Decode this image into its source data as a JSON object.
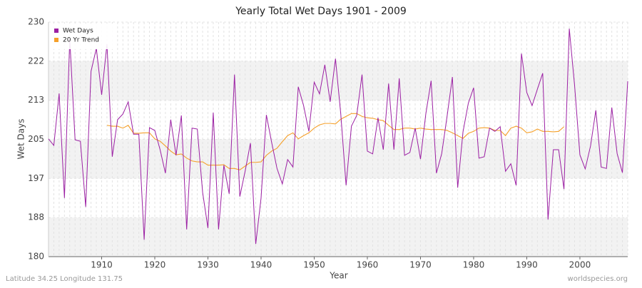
{
  "chart_data": {
    "type": "line",
    "title": "Yearly Total Wet Days 1901 - 2009",
    "x_label": "Year",
    "y_label": "Wet Days",
    "footer_left": "Latitude 34.25 Longitude 131.75",
    "footer_right": "worldspecies.org",
    "legend_position": "upper left",
    "grid": true,
    "xlim": [
      1900,
      2009
    ],
    "xticks": [
      1910,
      1920,
      1930,
      1940,
      1950,
      1960,
      1970,
      1980,
      1990,
      2000
    ],
    "ylim": [
      180,
      230
    ],
    "yticks": [
      180,
      {
        "value": 188.33,
        "label": "188"
      },
      {
        "value": 196.67,
        "label": "197"
      },
      205,
      {
        "value": 213.33,
        "label": "213"
      },
      {
        "value": 221.67,
        "label": "222"
      },
      230
    ],
    "x": [
      1900,
      1901,
      1902,
      1903,
      1904,
      1905,
      1906,
      1907,
      1908,
      1909,
      1910,
      1911,
      1912,
      1913,
      1914,
      1915,
      1916,
      1917,
      1918,
      1919,
      1920,
      1921,
      1922,
      1923,
      1924,
      1925,
      1926,
      1927,
      1928,
      1929,
      1930,
      1931,
      1932,
      1933,
      1934,
      1935,
      1936,
      1937,
      1938,
      1939,
      1940,
      1941,
      1942,
      1943,
      1944,
      1945,
      1946,
      1947,
      1948,
      1949,
      1950,
      1951,
      1952,
      1953,
      1954,
      1955,
      1956,
      1957,
      1958,
      1959,
      1960,
      1961,
      1962,
      1963,
      1964,
      1965,
      1966,
      1967,
      1968,
      1969,
      1970,
      1971,
      1972,
      1973,
      1974,
      1975,
      1976,
      1977,
      1978,
      1979,
      1980,
      1981,
      1982,
      1983,
      1984,
      1985,
      1986,
      1987,
      1988,
      1989,
      1990,
      1991,
      1992,
      1993,
      1994,
      1995,
      1996,
      1997,
      1998,
      1999,
      2000,
      2001,
      2002,
      2003,
      2004,
      2005,
      2006,
      2007,
      2008,
      2009
    ],
    "series": [
      {
        "name": "Wet Days",
        "color": "#9b1fa3",
        "values": [
          205.1,
          203.7,
          214.8,
          192.5,
          226.4,
          204.9,
          204.6,
          190.6,
          219.5,
          224.4,
          214.5,
          225.3,
          201.3,
          209.2,
          210.4,
          213.0,
          206.1,
          206.1,
          183.6,
          207.5,
          206.9,
          202.8,
          197.8,
          209.2,
          201.6,
          210.1,
          185.8,
          207.4,
          207.2,
          193.7,
          186.1,
          210.7,
          185.8,
          199.5,
          193.4,
          218.8,
          192.8,
          198.2,
          204.2,
          182.7,
          192.5,
          210.2,
          204.3,
          198.8,
          195.5,
          200.7,
          199.1,
          216.2,
          212.2,
          206.7,
          217.2,
          214.7,
          220.9,
          213.0,
          222.2,
          210.4,
          195.2,
          207.8,
          210.1,
          218.8,
          202.5,
          201.9,
          209.6,
          202.8,
          216.9,
          202.8,
          218.0,
          201.6,
          202.2,
          207.4,
          200.8,
          210.4,
          217.5,
          197.8,
          202.0,
          209.9,
          218.3,
          194.7,
          206.6,
          212.7,
          216.0,
          201.0,
          201.3,
          207.4,
          206.7,
          207.7,
          198.2,
          199.8,
          195.2,
          223.3,
          215.0,
          212.2,
          215.7,
          219.1,
          187.9,
          202.8,
          202.8,
          194.4,
          228.6,
          216.5,
          201.7,
          198.7,
          203.6,
          211.2,
          199.1,
          198.8,
          211.8,
          202.0,
          197.9,
          217.4
        ]
      },
      {
        "name": "20 Yr Trend",
        "color": "#f5a02a",
        "values": [
          null,
          null,
          null,
          null,
          null,
          null,
          null,
          null,
          null,
          null,
          null,
          208.0,
          207.8,
          207.8,
          207.4,
          208.0,
          206.3,
          206.3,
          206.4,
          206.4,
          205.1,
          204.6,
          203.6,
          202.5,
          201.7,
          201.9,
          201.0,
          200.4,
          200.2,
          200.2,
          199.5,
          199.5,
          199.5,
          199.6,
          198.8,
          198.8,
          198.5,
          199.3,
          200.1,
          200.1,
          200.2,
          201.6,
          202.5,
          203.1,
          204.5,
          205.8,
          206.4,
          205.1,
          205.8,
          206.4,
          207.4,
          208.1,
          208.4,
          208.4,
          208.3,
          209.3,
          209.9,
          210.5,
          210.5,
          209.9,
          209.6,
          209.5,
          209.2,
          209.0,
          208.0,
          207.1,
          207.1,
          207.4,
          207.4,
          207.2,
          207.4,
          207.2,
          207.1,
          207.1,
          207.1,
          206.9,
          206.4,
          205.8,
          205.2,
          206.3,
          206.7,
          207.4,
          207.5,
          207.4,
          206.9,
          206.9,
          205.8,
          207.4,
          207.8,
          207.4,
          206.4,
          206.6,
          207.2,
          206.7,
          206.7,
          206.6,
          206.7,
          207.7,
          null,
          null,
          null,
          null,
          null,
          null,
          null,
          null,
          null,
          null,
          null,
          null
        ]
      }
    ]
  }
}
